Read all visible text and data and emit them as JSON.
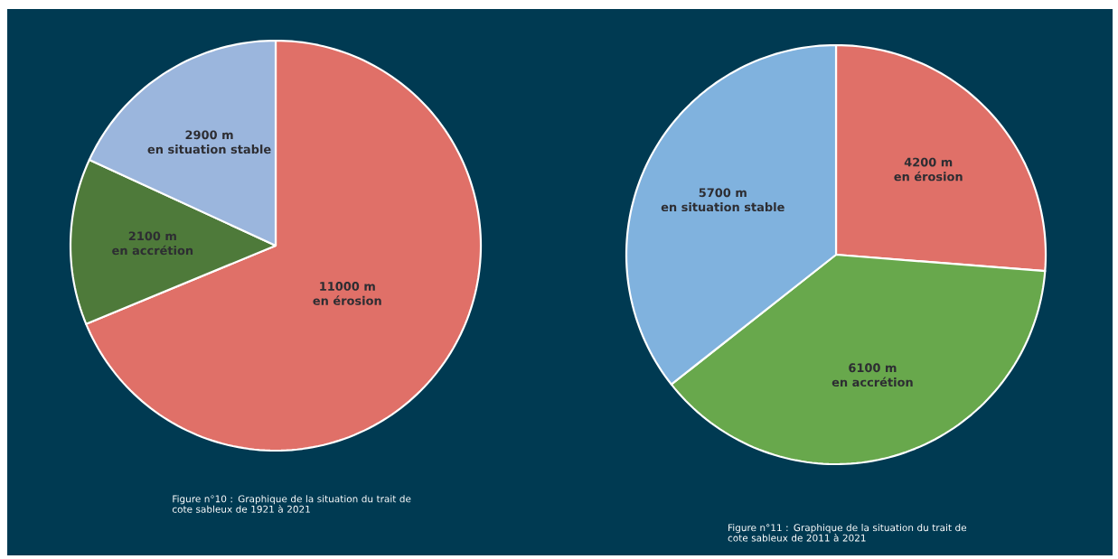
{
  "chart_data": [
    {
      "type": "pie",
      "categories": [
        "en érosion",
        "en accrétion",
        "en situation stable"
      ],
      "values": [
        11000,
        2100,
        2900
      ],
      "colors": [
        "#e07068",
        "#4e7a3a",
        "#9bb6dd"
      ],
      "value_labels": [
        "11000 m",
        "2100 m",
        "2900 m"
      ],
      "annotations": [
        "Figure n°10 : Graphique de la situation du trait de cote sableux de 1921 à 2021"
      ]
    },
    {
      "type": "pie",
      "categories": [
        "en érosion",
        "en accrétion",
        "en situation stable"
      ],
      "values": [
        4200,
        6100,
        5700
      ],
      "colors": [
        "#e07068",
        "#68a84c",
        "#80b2de"
      ],
      "value_labels": [
        "4200 m",
        "6100 m",
        "5700 m"
      ],
      "annotations": [
        "Figure n°11 : Graphique de la situation du trait de cote sableux de 2011 à 2021"
      ]
    }
  ]
}
